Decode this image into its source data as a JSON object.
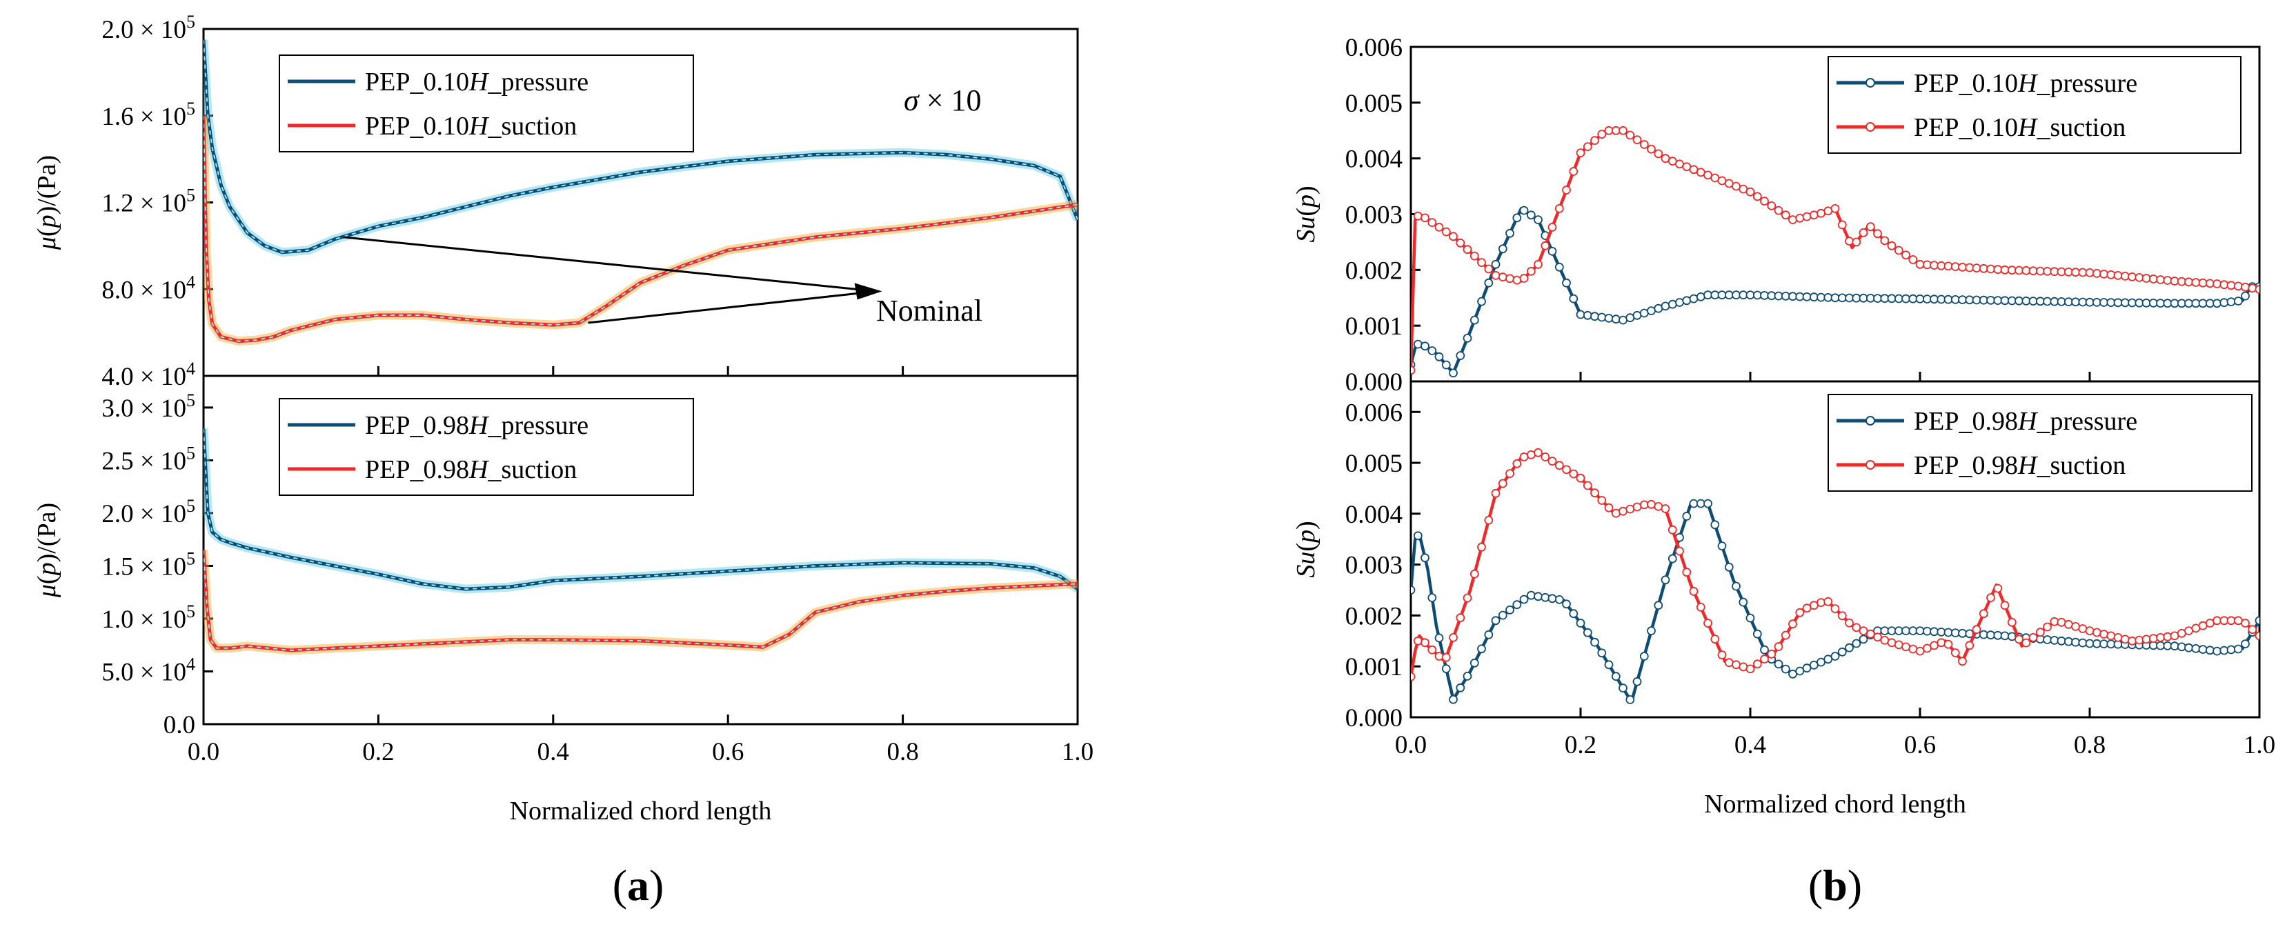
{
  "colors": {
    "pressure": "#0f4c75",
    "suction": "#ee2a2a",
    "pressure_band": "#5ccbe0",
    "suction_band": "#f5a623",
    "marker_fill": "#ffffff"
  },
  "chart_data": [
    {
      "type": "line",
      "panel_label": {
        "pre": "(",
        "letter": "a",
        "post": ")"
      },
      "subplots": [
        {
          "ylabel": {
            "mu": "μ",
            "paren_open": "(",
            "p": "p",
            "unit": ")/(Pa)"
          },
          "ylim": [
            40000,
            200000
          ],
          "yticks": [
            {
              "value": 40000,
              "mant": "4.0",
              "times": " × 10",
              "exp": "4"
            },
            {
              "value": 80000,
              "mant": "8.0",
              "times": " × 10",
              "exp": "4"
            },
            {
              "value": 120000,
              "mant": "1.2",
              "times": " × 10",
              "exp": "5"
            },
            {
              "value": 160000,
              "mant": "1.6",
              "times": " × 10",
              "exp": "5"
            },
            {
              "value": 200000,
              "mant": "2.0",
              "times": " × 10",
              "exp": "5"
            }
          ],
          "legend": [
            "PEP_0.10H_pressure",
            "PEP_0.10H_suction"
          ],
          "legend_parts": [
            {
              "pre": "PEP_0.10",
              "h": "H",
              "post": "_pressure"
            },
            {
              "pre": "PEP_0.10",
              "h": "H",
              "post": "_suction"
            }
          ],
          "annotations": {
            "sigma": "σ",
            "times10": " × 10",
            "nominal": "Nominal"
          },
          "series": [
            {
              "name": "PEP_0.10H_pressure",
              "x": [
                0,
                0.005,
                0.01,
                0.02,
                0.03,
                0.05,
                0.07,
                0.09,
                0.12,
                0.15,
                0.2,
                0.25,
                0.3,
                0.35,
                0.4,
                0.5,
                0.6,
                0.7,
                0.8,
                0.85,
                0.9,
                0.95,
                0.98,
                1.0
              ],
              "y": [
                195000,
                160000,
                145000,
                128000,
                118000,
                106000,
                100000,
                97000,
                98000,
                103000,
                109000,
                113000,
                118000,
                123000,
                127000,
                134000,
                139000,
                142000,
                143000,
                142000,
                140000,
                137000,
                132000,
                112000
              ]
            },
            {
              "name": "PEP_0.10H_suction",
              "x": [
                0,
                0.003,
                0.006,
                0.01,
                0.02,
                0.04,
                0.06,
                0.08,
                0.1,
                0.15,
                0.2,
                0.25,
                0.3,
                0.35,
                0.4,
                0.43,
                0.46,
                0.5,
                0.55,
                0.6,
                0.7,
                0.8,
                0.9,
                1.0
              ],
              "y": [
                160000,
                100000,
                75000,
                64000,
                58000,
                56000,
                56500,
                58000,
                61000,
                66000,
                68000,
                68000,
                66000,
                64500,
                63500,
                64500,
                72000,
                83000,
                91000,
                98000,
                104000,
                108000,
                113000,
                119000
              ]
            }
          ]
        },
        {
          "ylabel": {
            "mu": "μ",
            "paren_open": "(",
            "p": "p",
            "unit": ")/(Pa)"
          },
          "ylim": [
            0,
            330000
          ],
          "yticks": [
            {
              "value": 0,
              "mant": "0.0",
              "times": "",
              "exp": ""
            },
            {
              "value": 50000,
              "mant": "5.0",
              "times": " × 10",
              "exp": "4"
            },
            {
              "value": 100000,
              "mant": "1.0",
              "times": " × 10",
              "exp": "5"
            },
            {
              "value": 150000,
              "mant": "1.5",
              "times": " × 10",
              "exp": "5"
            },
            {
              "value": 200000,
              "mant": "2.0",
              "times": " × 10",
              "exp": "5"
            },
            {
              "value": 250000,
              "mant": "2.5",
              "times": " × 10",
              "exp": "5"
            },
            {
              "value": 300000,
              "mant": "3.0",
              "times": " × 10",
              "exp": "5"
            }
          ],
          "legend": [
            "PEP_0.98H_pressure",
            "PEP_0.98H_suction"
          ],
          "legend_parts": [
            {
              "pre": "PEP_0.98",
              "h": "H",
              "post": "_pressure"
            },
            {
              "pre": "PEP_0.98",
              "h": "H",
              "post": "_suction"
            }
          ],
          "series": [
            {
              "name": "PEP_0.98H_pressure",
              "x": [
                0,
                0.005,
                0.01,
                0.02,
                0.03,
                0.05,
                0.1,
                0.15,
                0.2,
                0.25,
                0.3,
                0.35,
                0.4,
                0.5,
                0.6,
                0.7,
                0.8,
                0.9,
                0.95,
                0.98,
                1.0
              ],
              "y": [
                280000,
                200000,
                182000,
                175000,
                172000,
                167000,
                158000,
                150000,
                142000,
                133000,
                128000,
                130000,
                136000,
                140000,
                145000,
                150000,
                153000,
                152000,
                148000,
                140000,
                128000
              ]
            },
            {
              "name": "PEP_0.98H_suction",
              "x": [
                0,
                0.004,
                0.008,
                0.015,
                0.03,
                0.05,
                0.1,
                0.15,
                0.2,
                0.3,
                0.35,
                0.4,
                0.5,
                0.6,
                0.64,
                0.67,
                0.7,
                0.75,
                0.8,
                0.85,
                0.9,
                0.95,
                1.0
              ],
              "y": [
                165000,
                110000,
                80000,
                72000,
                72000,
                74000,
                70000,
                72000,
                74000,
                78000,
                80000,
                80000,
                79000,
                75000,
                73000,
                85000,
                106000,
                116000,
                122000,
                126000,
                129000,
                131000,
                133000
              ]
            }
          ]
        }
      ],
      "xlabel": "Normalized chord length",
      "xlim": [
        0,
        1
      ],
      "xticks": [
        "0.0",
        "0.2",
        "0.4",
        "0.6",
        "0.8",
        "1.0"
      ]
    },
    {
      "type": "line",
      "panel_label": {
        "pre": "(",
        "letter": "b",
        "post": ")"
      },
      "subplots": [
        {
          "ylabel": {
            "s": "Su",
            "paren_open": "(",
            "p": "p",
            "paren_close": ")"
          },
          "ylim": [
            0,
            0.006
          ],
          "yticks": [
            "0.000",
            "0.001",
            "0.002",
            "0.003",
            "0.004",
            "0.005",
            "0.006"
          ],
          "legend": [
            "PEP_0.10H_pressure",
            "PEP_0.10H_suction"
          ],
          "legend_parts": [
            {
              "pre": "PEP_0.10",
              "h": "H",
              "post": "_pressure"
            },
            {
              "pre": "PEP_0.10",
              "h": "H",
              "post": "_suction"
            }
          ],
          "series": [
            {
              "name": "PEP_0.10H_pressure",
              "x": [
                0,
                0.005,
                0.01,
                0.02,
                0.03,
                0.05,
                0.07,
                0.1,
                0.13,
                0.15,
                0.2,
                0.25,
                0.3,
                0.35,
                0.4,
                0.5,
                0.6,
                0.7,
                0.8,
                0.9,
                0.95,
                0.98,
                0.99,
                1.0
              ],
              "y": [
                0.0003,
                0.0006,
                0.0007,
                0.0006,
                0.0005,
                0.00015,
                0.0009,
                0.0021,
                0.0031,
                0.0029,
                0.0012,
                0.0011,
                0.00135,
                0.00155,
                0.00155,
                0.0015,
                0.00148,
                0.00145,
                0.00142,
                0.0014,
                0.0014,
                0.00145,
                0.0017,
                0.0017
              ]
            },
            {
              "name": "PEP_0.10H_suction",
              "x": [
                0,
                0.005,
                0.01,
                0.02,
                0.05,
                0.1,
                0.13,
                0.15,
                0.18,
                0.2,
                0.23,
                0.25,
                0.3,
                0.35,
                0.4,
                0.45,
                0.48,
                0.5,
                0.52,
                0.54,
                0.56,
                0.6,
                0.7,
                0.8,
                0.9,
                0.95,
                0.98,
                1.0
              ],
              "y": [
                0.0002,
                0.0029,
                0.003,
                0.0029,
                0.0026,
                0.0019,
                0.0018,
                0.0021,
                0.0033,
                0.0041,
                0.0045,
                0.0045,
                0.004,
                0.0037,
                0.0034,
                0.0029,
                0.003,
                0.0031,
                0.0024,
                0.0028,
                0.0025,
                0.0021,
                0.002,
                0.00195,
                0.0018,
                0.00175,
                0.0017,
                0.00165
              ]
            }
          ]
        },
        {
          "ylabel": {
            "s": "Su",
            "paren_open": "(",
            "p": "p",
            "paren_close": ")"
          },
          "ylim": [
            0,
            0.0066
          ],
          "yticks": [
            "0.000",
            "0.001",
            "0.002",
            "0.003",
            "0.004",
            "0.005",
            "0.006"
          ],
          "legend": [
            "PEP_0.98H_pressure",
            "PEP_0.98H_suction"
          ],
          "legend_parts": [
            {
              "pre": "PEP_0.98",
              "h": "H",
              "post": "_pressure"
            },
            {
              "pre": "PEP_0.98",
              "h": "H",
              "post": "_suction"
            }
          ],
          "series": [
            {
              "name": "PEP_0.98H_pressure",
              "x": [
                0,
                0.005,
                0.01,
                0.02,
                0.03,
                0.05,
                0.07,
                0.1,
                0.14,
                0.18,
                0.22,
                0.26,
                0.3,
                0.33,
                0.35,
                0.38,
                0.42,
                0.45,
                0.5,
                0.55,
                0.6,
                0.7,
                0.8,
                0.9,
                0.95,
                0.98,
                1.0
              ],
              "y": [
                0.0025,
                0.0035,
                0.0036,
                0.0029,
                0.0018,
                0.00035,
                0.0009,
                0.0019,
                0.0024,
                0.0023,
                0.0014,
                0.0003,
                0.0027,
                0.0042,
                0.0042,
                0.0027,
                0.0012,
                0.00085,
                0.0012,
                0.0017,
                0.0017,
                0.0016,
                0.00145,
                0.0014,
                0.0013,
                0.00135,
                0.0019
              ]
            },
            {
              "name": "PEP_0.98H_suction",
              "x": [
                0,
                0.005,
                0.01,
                0.02,
                0.04,
                0.07,
                0.1,
                0.13,
                0.15,
                0.2,
                0.24,
                0.28,
                0.3,
                0.33,
                0.37,
                0.4,
                0.43,
                0.46,
                0.49,
                0.52,
                0.56,
                0.6,
                0.63,
                0.65,
                0.69,
                0.72,
                0.76,
                0.8,
                0.85,
                0.9,
                0.95,
                0.98,
                1.0
              ],
              "y": [
                0.0008,
                0.0013,
                0.0016,
                0.0014,
                0.0011,
                0.0025,
                0.0044,
                0.0051,
                0.0052,
                0.0047,
                0.004,
                0.0042,
                0.0041,
                0.0026,
                0.0011,
                0.00095,
                0.0013,
                0.0021,
                0.0023,
                0.0018,
                0.0015,
                0.0013,
                0.0015,
                0.0011,
                0.0026,
                0.0014,
                0.0019,
                0.0017,
                0.0015,
                0.0016,
                0.0019,
                0.0019,
                0.0016
              ]
            }
          ]
        }
      ],
      "xlabel": "Normalized chord length",
      "xlim": [
        0,
        1
      ],
      "xticks": [
        "0.0",
        "0.2",
        "0.4",
        "0.6",
        "0.8",
        "1.0"
      ]
    }
  ]
}
